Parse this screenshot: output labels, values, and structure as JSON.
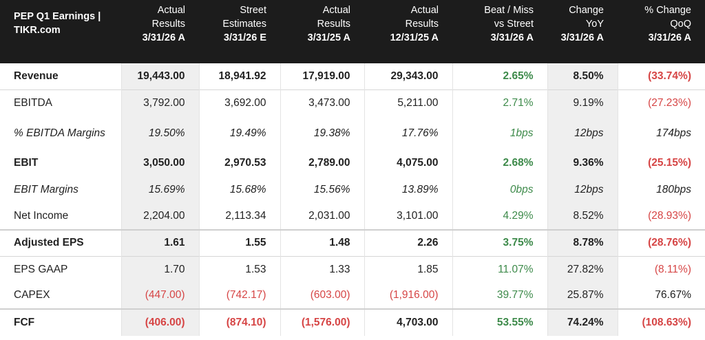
{
  "header": {
    "title_line1": "PEP Q1 Earnings |",
    "title_line2": "TIKR.com",
    "columns": [
      {
        "l1": "Actual",
        "l2": "Results",
        "l3": "3/31/26 A"
      },
      {
        "l1": "Street",
        "l2": "Estimates",
        "l3": "3/31/26 E"
      },
      {
        "l1": "Actual",
        "l2": "Results",
        "l3": "3/31/25 A"
      },
      {
        "l1": "Actual",
        "l2": "Results",
        "l3": "12/31/25 A"
      },
      {
        "l1": "Beat / Miss",
        "l2": "vs Street",
        "l3": "3/31/26 A"
      },
      {
        "l1": "Change",
        "l2": "YoY",
        "l3": "3/31/26 A"
      },
      {
        "l1": "% Change",
        "l2": "QoQ",
        "l3": "3/31/26 A"
      }
    ]
  },
  "rows": [
    {
      "label": "Revenue",
      "values": [
        "19,443.00",
        "18,941.92",
        "17,919.00",
        "29,343.00",
        "2.65%",
        "8.50%",
        "(33.74%)"
      ]
    },
    {
      "label": "EBITDA",
      "values": [
        "3,792.00",
        "3,692.00",
        "3,473.00",
        "5,211.00",
        "2.71%",
        "9.19%",
        "(27.23%)"
      ]
    },
    {
      "label": "% EBITDA Margins",
      "values": [
        "19.50%",
        "19.49%",
        "19.38%",
        "17.76%",
        "1bps",
        "12bps",
        "174bps"
      ]
    },
    {
      "label": "EBIT",
      "values": [
        "3,050.00",
        "2,970.53",
        "2,789.00",
        "4,075.00",
        "2.68%",
        "9.36%",
        "(25.15%)"
      ]
    },
    {
      "label": "EBIT Margins",
      "values": [
        "15.69%",
        "15.68%",
        "15.56%",
        "13.89%",
        "0bps",
        "12bps",
        "180bps"
      ]
    },
    {
      "label": "Net Income",
      "values": [
        "2,204.00",
        "2,113.34",
        "2,031.00",
        "3,101.00",
        "4.29%",
        "8.52%",
        "(28.93%)"
      ]
    },
    {
      "label": "Adjusted EPS",
      "values": [
        "1.61",
        "1.55",
        "1.48",
        "2.26",
        "3.75%",
        "8.78%",
        "(28.76%)"
      ]
    },
    {
      "label": "EPS GAAP",
      "values": [
        "1.70",
        "1.53",
        "1.33",
        "1.85",
        "11.07%",
        "27.82%",
        "(8.11%)"
      ]
    },
    {
      "label": "CAPEX",
      "values": [
        "(447.00)",
        "(742.17)",
        "(603.00)",
        "(1,916.00)",
        "39.77%",
        "25.87%",
        "76.67%"
      ]
    },
    {
      "label": "FCF",
      "values": [
        "(406.00)",
        "(874.10)",
        "(1,576.00)",
        "4,703.00",
        "53.55%",
        "74.24%",
        "(108.63%)"
      ]
    }
  ],
  "colors": {
    "header_bg": "#1c1c1c",
    "positive": "#3d8a4a",
    "negative": "#d64545",
    "shade": "#efefef"
  }
}
